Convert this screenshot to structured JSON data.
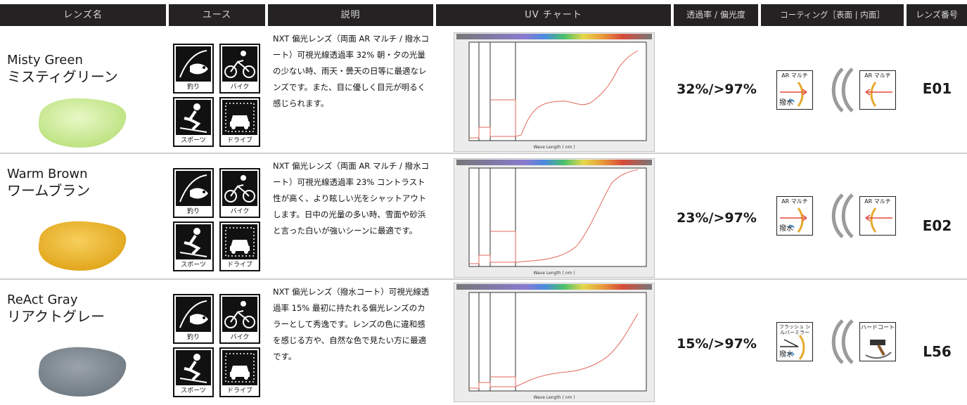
{
  "headers": [
    "レンズ名",
    "ユース",
    "説明",
    "UV チャート",
    "透過率 / 偏光度",
    "コーティング［表面 | 内面］",
    "レンズ番号"
  ],
  "use_icons": [
    {
      "icon": "fishing-icon",
      "label": "釣り"
    },
    {
      "icon": "bicycle-icon",
      "label": "バイク"
    },
    {
      "icon": "skiing-icon",
      "label": "スポーツ"
    },
    {
      "icon": "car-icon",
      "label": "ドライブ"
    }
  ],
  "rows": [
    {
      "name_en": "Misty Green",
      "name_jp": "ミスティグリーン",
      "lens_color": "#b9e07a",
      "lens_color_light": "#e8f8c6",
      "description": "NXT 偏光レンズ（両面 AR マルチ / 撥水コート）可視光線透過率 32% 朝・夕の光量の少ない時、雨天・曇天の日等に最適なレンズです。また、目に優しく目元が明るく感じられます。",
      "rate": "32%/>97%",
      "coating_front_top": "AR マルチ",
      "coating_front_bottom": "撥水",
      "coating_inner_top": "AR マルチ",
      "code": "E01"
    },
    {
      "name_en": "Warm Brown",
      "name_jp": "ワームブラン",
      "lens_color": "#e0a317",
      "lens_color_light": "#f6cf5c",
      "description": "NXT 偏光レンズ（両面 AR マルチ / 撥水コート）可視光線透過率 23% コントラスト性が高く、より眩しい光をシャットアウトします。日中の光量の多い時、雪面や砂浜と言った白いが強いシーンに最適です。",
      "rate": "23%/>97%",
      "coating_front_top": "AR マルチ",
      "coating_front_bottom": "撥水",
      "coating_inner_top": "AR マルチ",
      "code": "E02"
    },
    {
      "name_en": "ReAct Gray",
      "name_jp": "リアクトグレー",
      "lens_color": "#6e7880",
      "lens_color_light": "#9aa3ab",
      "description": "NXT 偏光レンズ（撥水コート）可視光線透過率 15% 最初に持たれる偏光レンズのカラーとして秀逸です。レンズの色に違和感を感じる方や、自然な色で見たい方に最適です。",
      "rate": "15%/>97%",
      "coating_front_top": "フラッシュ シルバーミラー",
      "coating_front_bottom": "撥水",
      "coating_inner_top": "ハードコート",
      "code": "L56"
    }
  ]
}
